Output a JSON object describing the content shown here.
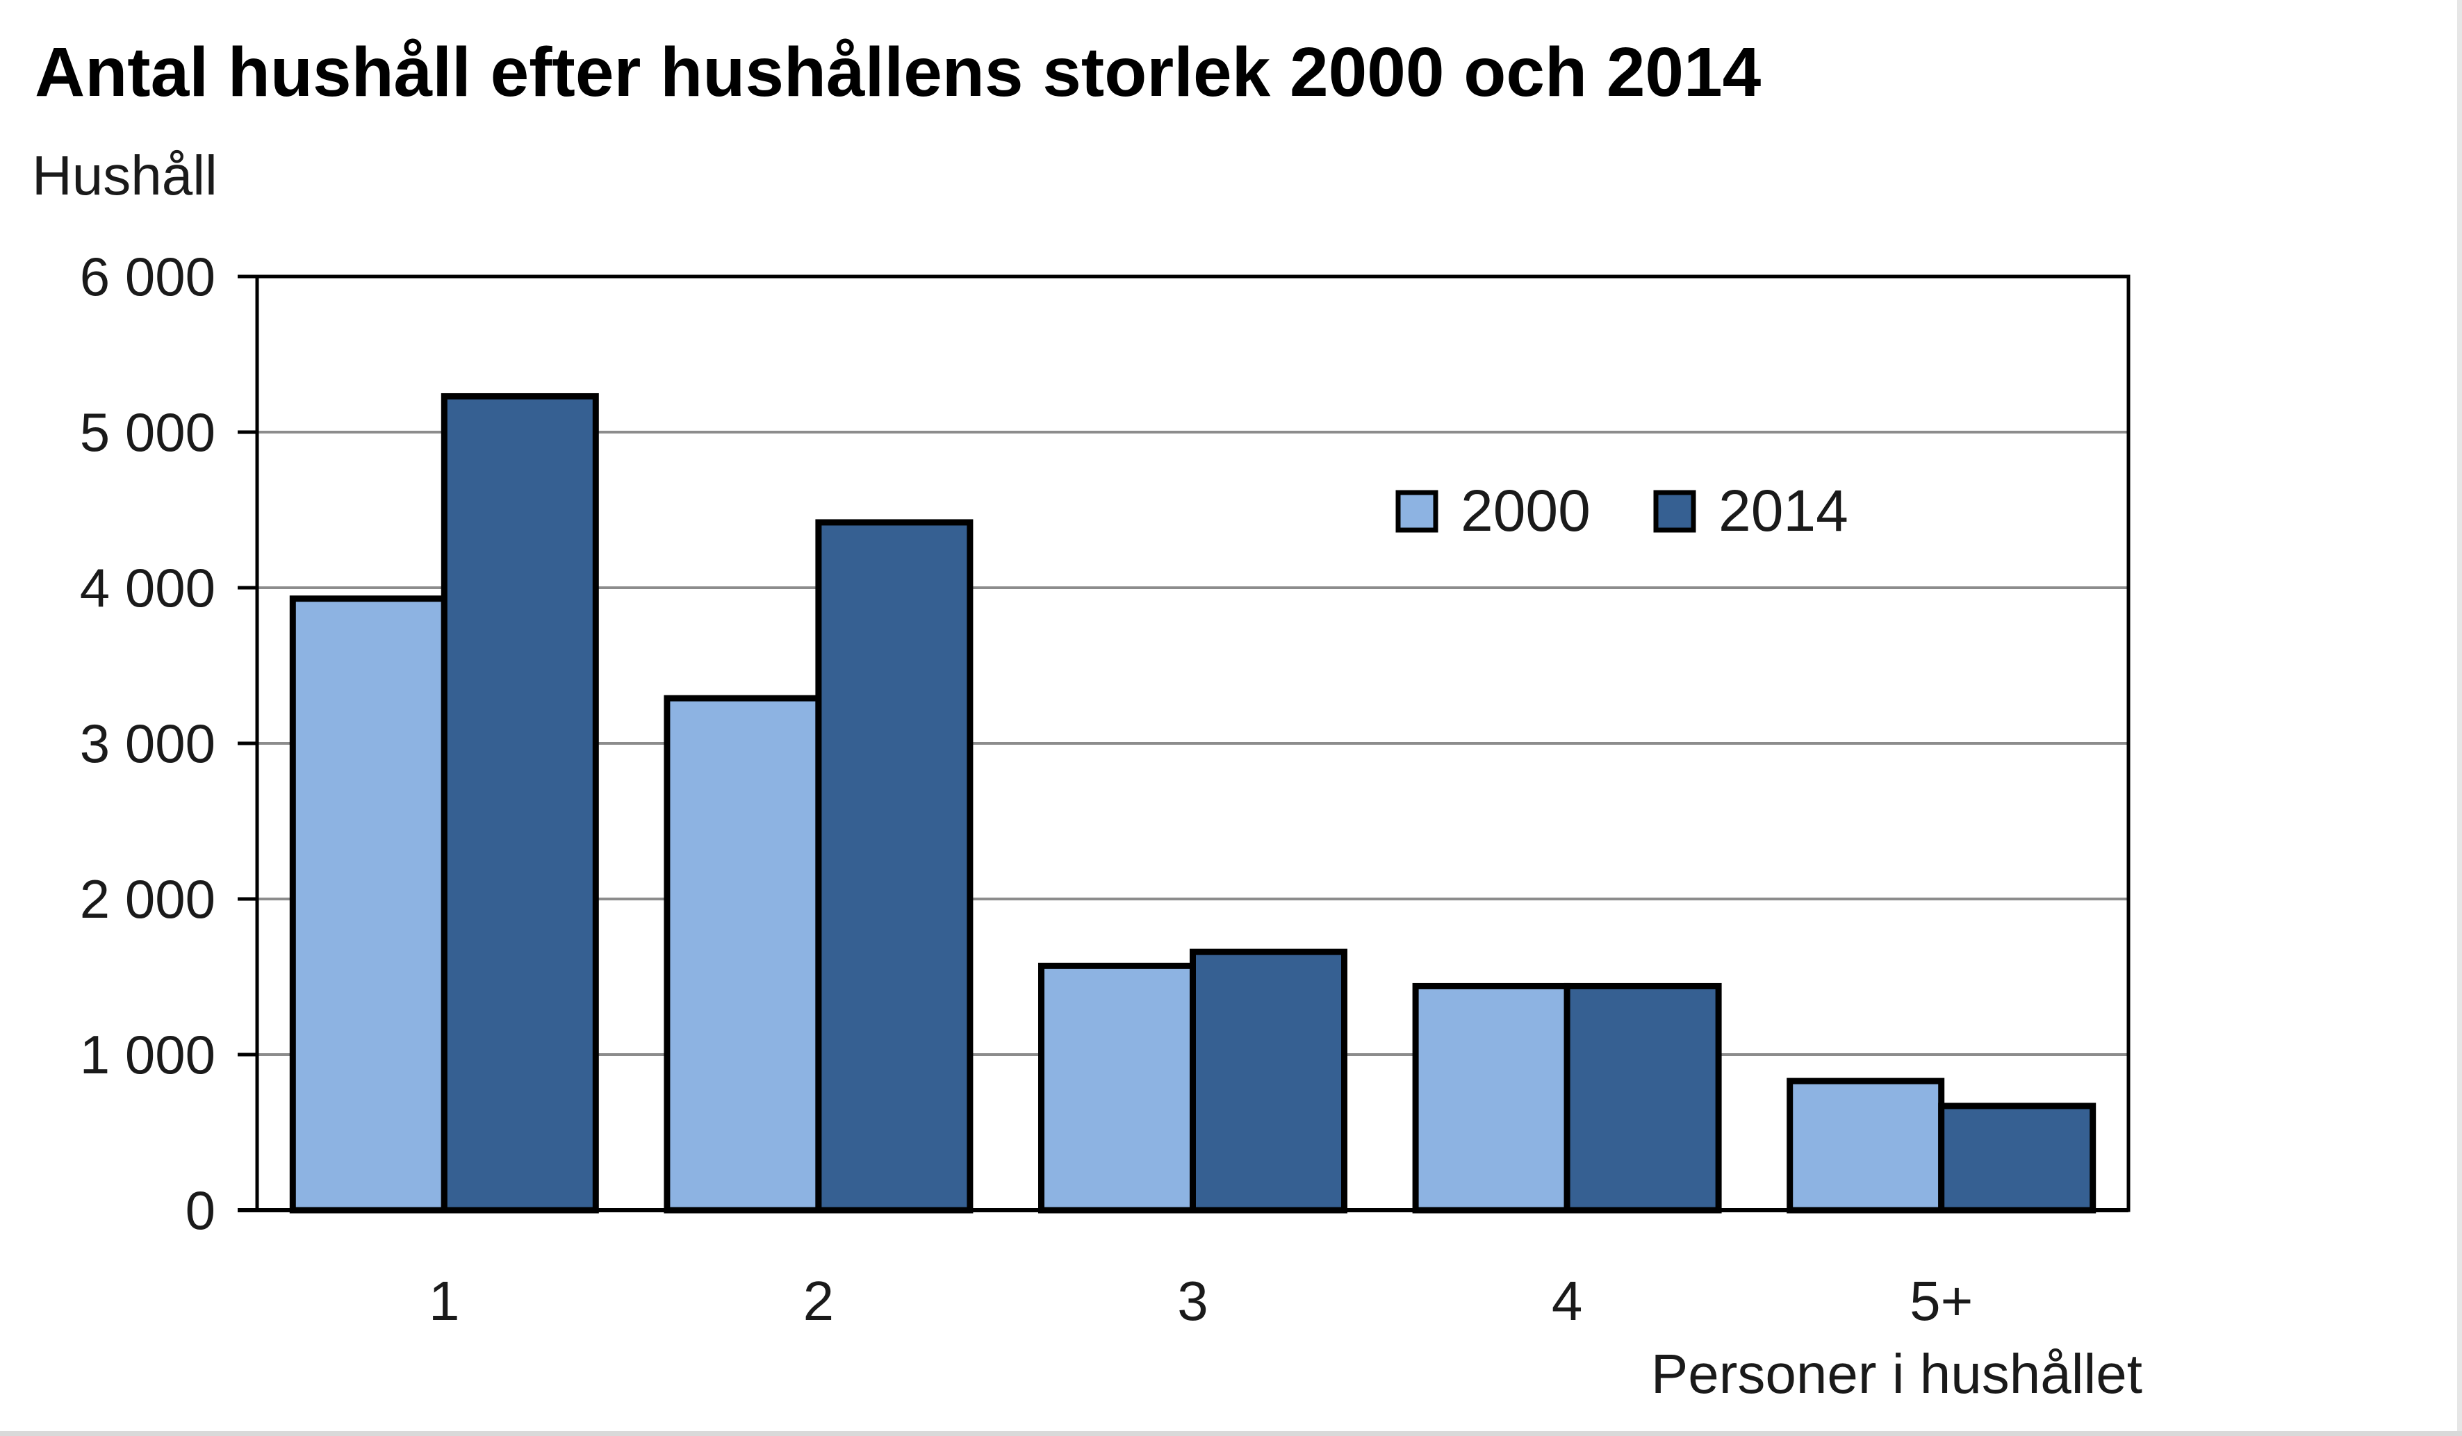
{
  "chart_data": {
    "type": "bar",
    "title": "Antal hushåll efter hushållens storlek 2000 och 2014",
    "ylabel": "Hushåll",
    "xlabel": "Personer i hushållet",
    "categories": [
      "1",
      "2",
      "3",
      "4",
      "5+"
    ],
    "series": [
      {
        "name": "2000",
        "values": [
          3930,
          3290,
          1570,
          1440,
          830
        ],
        "color": "#8db3e2"
      },
      {
        "name": "2014",
        "values": [
          5230,
          4420,
          1660,
          1440,
          670
        ],
        "color": "#366092"
      }
    ],
    "ylim": [
      0,
      6000
    ],
    "yticks": [
      0,
      1000,
      2000,
      3000,
      4000,
      5000,
      6000
    ],
    "ytick_labels": [
      "0",
      "1 000",
      "2 000",
      "3 000",
      "4 000",
      "5 000",
      "6 000"
    ],
    "grid": true,
    "legend_position": "top-right"
  }
}
